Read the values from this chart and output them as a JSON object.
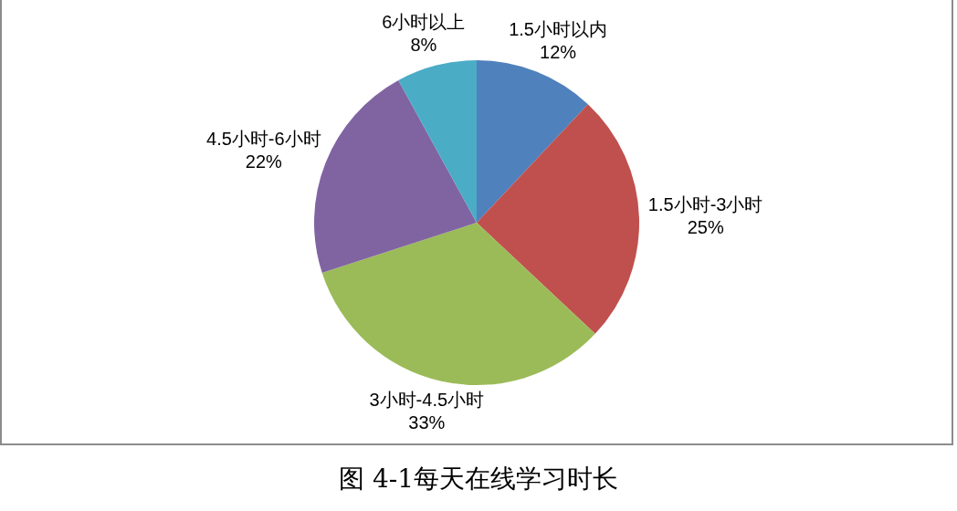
{
  "chart_data": {
    "type": "pie",
    "title": "图 4-1每天在线学习时长",
    "categories": [
      "1.5小时以内",
      "1.5小时-3小时",
      "3小时-4.5小时",
      "4.5小时-6小时",
      "6小时以上"
    ],
    "values": [
      12,
      25,
      33,
      22,
      8
    ],
    "colors": [
      "#4f81bd",
      "#c0504d",
      "#9bbb59",
      "#8064a2",
      "#4bacc6"
    ],
    "value_labels": [
      "12%",
      "25%",
      "33%",
      "22%",
      "8%"
    ]
  }
}
